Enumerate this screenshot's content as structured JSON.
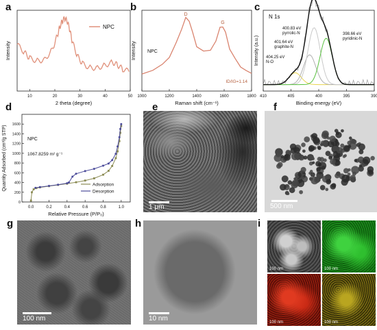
{
  "panels": {
    "a": {
      "label": "a"
    },
    "b": {
      "label": "b"
    },
    "c": {
      "label": "c"
    },
    "d": {
      "label": "d"
    },
    "e": {
      "label": "e",
      "scale": "1 μm"
    },
    "f": {
      "label": "f",
      "scale": "500 nm"
    },
    "g": {
      "label": "g",
      "scale": "100 nm"
    },
    "h": {
      "label": "h",
      "scale": "10 nm"
    },
    "i": {
      "label": "i",
      "scales": [
        "100 nm",
        "100 nm",
        "100 nm",
        "100 nm"
      ]
    }
  },
  "chart_data": [
    {
      "id": "xrd",
      "type": "line",
      "xlabel": "2 theta (degree)",
      "ylabel": "Intensity",
      "xlim": [
        5,
        50
      ],
      "xticks": [
        "10",
        "20",
        "30",
        "40",
        "50"
      ],
      "legend": "NPC",
      "series": [
        {
          "name": "NPC",
          "color": "#e0907a",
          "x": [
            5,
            8,
            10,
            13,
            16,
            19,
            21,
            22,
            23,
            24,
            25,
            26,
            27,
            29,
            31,
            34,
            37,
            40,
            43,
            45,
            47,
            50
          ],
          "y": [
            0.62,
            0.5,
            0.42,
            0.38,
            0.4,
            0.55,
            0.75,
            0.88,
            0.96,
            1.0,
            0.95,
            0.82,
            0.65,
            0.45,
            0.34,
            0.28,
            0.28,
            0.32,
            0.36,
            0.32,
            0.26,
            0.22
          ]
        }
      ]
    },
    {
      "id": "raman",
      "type": "line",
      "xlabel": "Raman shift (cm⁻¹)",
      "ylabel": "Intensity",
      "xlim": [
        1000,
        1800
      ],
      "xticks": [
        "1000",
        "1200",
        "1400",
        "1600",
        "1800"
      ],
      "annotations": {
        "sample": "NPC",
        "ratio": "ID/IG=1.14",
        "d_peak": "D",
        "g_peak": "G"
      },
      "series": [
        {
          "name": "NPC",
          "color": "#d9836e",
          "x": [
            1000,
            1080,
            1150,
            1200,
            1250,
            1290,
            1320,
            1345,
            1370,
            1400,
            1450,
            1500,
            1540,
            1570,
            1590,
            1610,
            1640,
            1680,
            1720,
            1760,
            1800
          ],
          "y": [
            0.16,
            0.22,
            0.3,
            0.42,
            0.62,
            0.85,
            1.0,
            0.97,
            0.78,
            0.58,
            0.5,
            0.52,
            0.66,
            0.86,
            0.88,
            0.78,
            0.55,
            0.38,
            0.28,
            0.2,
            0.18
          ]
        }
      ]
    },
    {
      "id": "xps",
      "type": "line",
      "title": "N 1s",
      "xlabel": "Binding energy (eV)",
      "ylabel": "Intensity (a.u.)",
      "xlim": [
        410,
        390
      ],
      "xticks": [
        "410",
        "405",
        "400",
        "395",
        "390"
      ],
      "peaks": [
        {
          "label1": "404.25 eV",
          "label2": "N-O",
          "center": 404.25,
          "height": 0.18,
          "color": "#e8d44d"
        },
        {
          "label1": "401.64 eV",
          "label2": "graphite-N",
          "center": 401.64,
          "height": 0.45,
          "color": "#b0b0b0"
        },
        {
          "label1": "400.83 eV",
          "label2": "pyrrolic-N",
          "center": 400.83,
          "height": 0.86,
          "color": "#c9c9c9"
        },
        {
          "label1": "398.66 eV",
          "label2": "pyridinic-N",
          "center": 398.66,
          "height": 0.7,
          "color": "#58c13e"
        }
      ],
      "envelope_color": "#111111",
      "raw_color": "#9a9a9a"
    },
    {
      "id": "bet",
      "type": "line",
      "xlabel": "Relative Pressure (P/P₀)",
      "ylabel": "Quantity Adsorbed (cm³/g STP)",
      "xlim": [
        -0.1,
        1.1
      ],
      "ylim": [
        0,
        1800
      ],
      "xticks": [
        "0.0",
        "0.2",
        "0.4",
        "0.6",
        "0.8",
        "1.0"
      ],
      "yticks": [
        "0",
        "200",
        "400",
        "600",
        "800",
        "1000",
        "1200",
        "1400",
        "1600"
      ],
      "annotations": {
        "sample": "NPC",
        "surface_area": "1067.8259 m² g⁻¹"
      },
      "series": [
        {
          "name": "Adsorption",
          "color": "#8a8a52",
          "x": [
            0.0,
            0.01,
            0.03,
            0.06,
            0.1,
            0.2,
            0.3,
            0.4,
            0.5,
            0.6,
            0.7,
            0.8,
            0.86,
            0.9,
            0.94,
            0.96,
            0.98,
            0.99,
            1.0
          ],
          "y": [
            30,
            200,
            260,
            285,
            300,
            325,
            350,
            375,
            405,
            440,
            485,
            560,
            640,
            740,
            900,
            1040,
            1250,
            1420,
            1560
          ]
        },
        {
          "name": "Desorption",
          "color": "#4b4b9a",
          "x": [
            1.0,
            0.99,
            0.98,
            0.96,
            0.94,
            0.9,
            0.86,
            0.8,
            0.7,
            0.6,
            0.5,
            0.46,
            0.42,
            0.4,
            0.3,
            0.2,
            0.1,
            0.05
          ],
          "y": [
            1600,
            1500,
            1330,
            1140,
            990,
            860,
            790,
            745,
            680,
            635,
            580,
            520,
            400,
            385,
            355,
            330,
            305,
            290
          ]
        }
      ]
    }
  ]
}
